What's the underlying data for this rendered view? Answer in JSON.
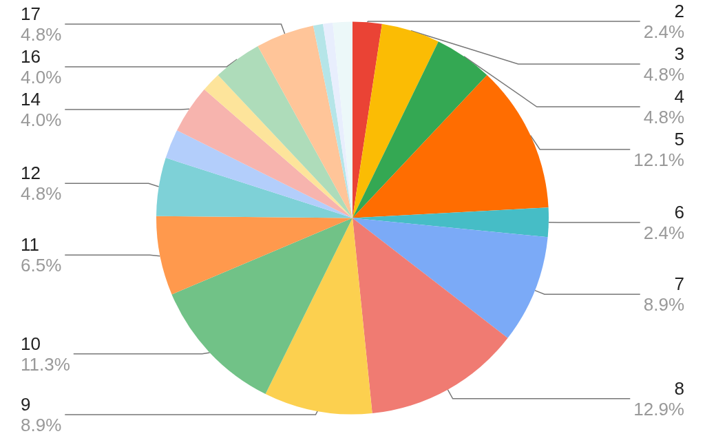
{
  "chart_data": {
    "type": "pie",
    "categories": [
      "2",
      "3",
      "4",
      "5",
      "6",
      "7",
      "8",
      "9",
      "10",
      "11",
      "12",
      null,
      "14",
      null,
      "16",
      "17",
      null,
      null,
      null
    ],
    "values": [
      2.4,
      4.8,
      4.8,
      12.1,
      2.4,
      8.9,
      12.9,
      8.9,
      11.3,
      6.5,
      4.8,
      2.4,
      4.0,
      1.6,
      4.0,
      4.8,
      0.8,
      0.8,
      1.6
    ],
    "value_labels": [
      "2.4%",
      "4.8%",
      "4.8%",
      "12.1%",
      "2.4%",
      "8.9%",
      "12.9%",
      "8.9%",
      "11.3%",
      "6.5%",
      "4.8%",
      null,
      "4.0%",
      null,
      "4.0%",
      "4.8%",
      null,
      null,
      null
    ],
    "colors": [
      "#ea4335",
      "#fbbc04",
      "#34a853",
      "#ff6d01",
      "#46bdc6",
      "#7baaf7",
      "#f07b72",
      "#fcd04f",
      "#71c287",
      "#ff994d",
      "#7ed1d7",
      "#b3cefb",
      "#f7b4ae",
      "#fde49b",
      "#aedcba",
      "#ffc599",
      "#b5e5e8",
      "#e8eefd",
      "#ecf8f9"
    ],
    "legend": false
  }
}
